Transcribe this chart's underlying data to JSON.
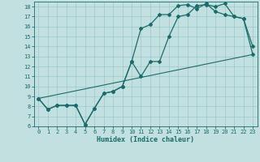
{
  "xlabel": "Humidex (Indice chaleur)",
  "background_color": "#c2e0e0",
  "grid_color": "#9ac8c8",
  "line_color": "#1a6b6b",
  "xlim": [
    -0.5,
    23.5
  ],
  "ylim": [
    6,
    18.5
  ],
  "x_ticks": [
    0,
    1,
    2,
    3,
    4,
    5,
    6,
    7,
    8,
    9,
    10,
    11,
    12,
    13,
    14,
    15,
    16,
    17,
    18,
    19,
    20,
    21,
    22,
    23
  ],
  "y_ticks": [
    6,
    7,
    8,
    9,
    10,
    11,
    12,
    13,
    14,
    15,
    16,
    17,
    18
  ],
  "line1_x": [
    0,
    1,
    2,
    3,
    4,
    5,
    6,
    7,
    8,
    9,
    10,
    11,
    12,
    13,
    14,
    15,
    16,
    17,
    18,
    19,
    20,
    21,
    22,
    23
  ],
  "line1_y": [
    8.8,
    7.7,
    8.1,
    8.1,
    8.1,
    6.2,
    7.8,
    9.3,
    9.5,
    10.0,
    12.5,
    11.0,
    12.5,
    12.5,
    15.0,
    17.0,
    17.2,
    18.1,
    18.2,
    18.0,
    18.3,
    17.0,
    16.8,
    14.0
  ],
  "line2_x": [
    0,
    1,
    2,
    3,
    4,
    5,
    6,
    7,
    8,
    9,
    10,
    11,
    12,
    13,
    14,
    15,
    16,
    17,
    18,
    19,
    20,
    21,
    22,
    23
  ],
  "line2_y": [
    8.8,
    7.7,
    8.1,
    8.1,
    8.1,
    6.2,
    7.8,
    9.3,
    9.5,
    10.0,
    12.5,
    15.8,
    16.2,
    17.2,
    17.2,
    18.1,
    18.2,
    17.8,
    18.3,
    17.5,
    17.2,
    17.0,
    16.8,
    13.2
  ],
  "line3_x": [
    0,
    23
  ],
  "line3_y": [
    8.8,
    13.2
  ]
}
